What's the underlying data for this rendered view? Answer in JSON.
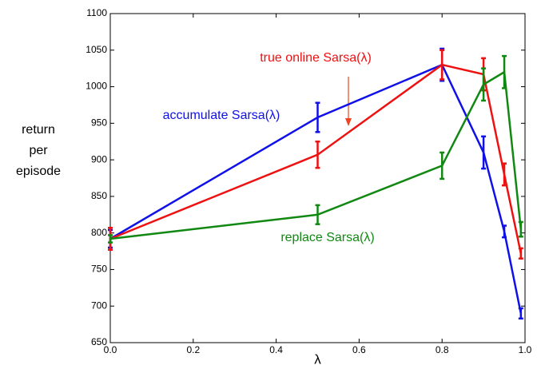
{
  "chart_data": {
    "type": "line",
    "x_label": "λ",
    "y_label": [
      "return",
      "per",
      "episode"
    ],
    "x": [
      0,
      0.5,
      0.8,
      0.9,
      0.95,
      0.99
    ],
    "series": [
      {
        "name": "accumulate Sarsa(λ)",
        "color": "#1010e8",
        "values": [
          792,
          958,
          1030,
          910,
          802,
          690
        ],
        "errors": [
          12,
          20,
          22,
          22,
          8,
          7
        ]
      },
      {
        "name": "true online Sarsa(λ)",
        "color": "#ee1111",
        "values": [
          792,
          907,
          1030,
          1017,
          880,
          772
        ],
        "errors": [
          15,
          18,
          20,
          22,
          15,
          7
        ]
      },
      {
        "name": "replace Sarsa(λ)",
        "color": "#118811",
        "values": [
          792,
          825,
          892,
          1003,
          1020,
          805
        ],
        "errors": [
          5,
          13,
          18,
          22,
          22,
          10
        ]
      }
    ],
    "xlim": [
      0,
      1
    ],
    "ylim": [
      650,
      1100
    ],
    "xticks": [
      {
        "value": 0,
        "label": "0.0"
      },
      {
        "value": 0.2,
        "label": "0.2"
      },
      {
        "value": 0.4,
        "label": "0.4"
      },
      {
        "value": 0.6,
        "label": "0.6"
      },
      {
        "value": 0.8,
        "label": "0.8"
      },
      {
        "value": 1,
        "label": "1.0"
      }
    ],
    "yticks": [
      650,
      700,
      750,
      800,
      850,
      900,
      950,
      1000,
      1050,
      1100
    ]
  }
}
